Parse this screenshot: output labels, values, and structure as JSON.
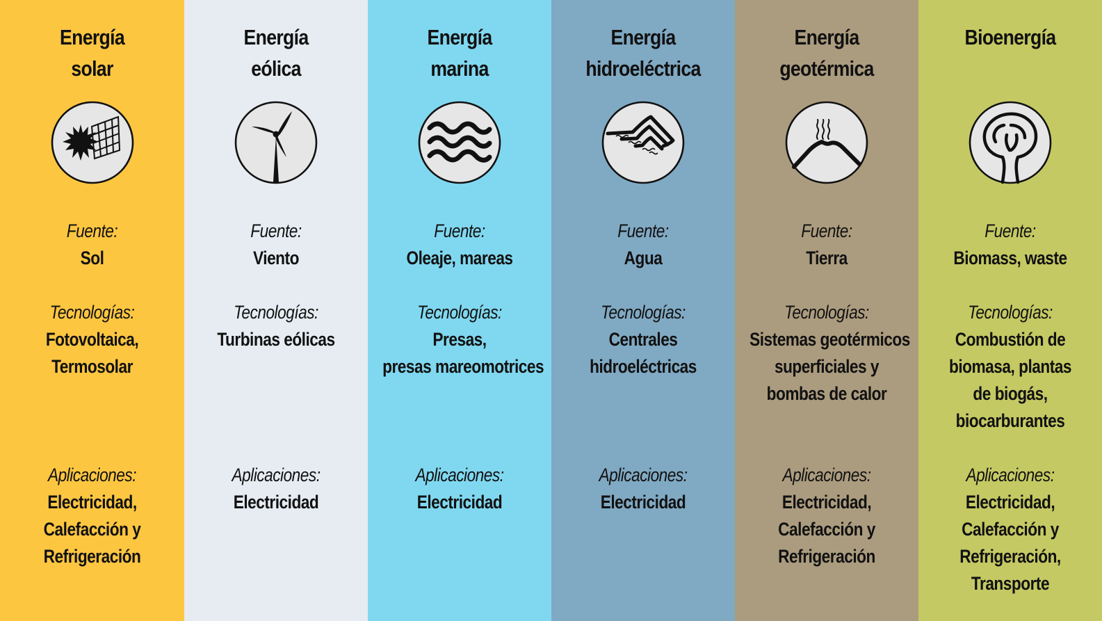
{
  "labels": {
    "fuente": "Fuente:",
    "tecnologias": "Tecnologías:",
    "aplicaciones": "Aplicaciones:"
  },
  "columns": [
    {
      "title": [
        "Energía",
        "solar"
      ],
      "icon": "solar-icon",
      "color": "#FDC641",
      "source": "Sol",
      "tech": [
        "Fotovoltaica,",
        "Termosolar"
      ],
      "apps": [
        "Electricidad,",
        "Calefacción y",
        "Refrigeración"
      ]
    },
    {
      "title": [
        "Energía",
        "eólica"
      ],
      "icon": "wind-turbine-icon",
      "color": "#E6ECF2",
      "source": "Viento",
      "tech": [
        "Turbinas eólicas"
      ],
      "apps": [
        "Electricidad"
      ]
    },
    {
      "title": [
        "Energía",
        "marina"
      ],
      "icon": "waves-icon",
      "color": "#80D8F0",
      "source": "Oleaje, mareas",
      "tech": [
        "Presas,",
        "presas mareomotrices"
      ],
      "apps": [
        "Electricidad"
      ]
    },
    {
      "title": [
        "Energía",
        "hidroeléctrica"
      ],
      "icon": "dam-icon",
      "color": "#80A9C3",
      "source": "Agua",
      "tech": [
        "Centrales",
        "hidroeléctricas"
      ],
      "apps": [
        "Electricidad"
      ]
    },
    {
      "title": [
        "Energía",
        "geotérmica"
      ],
      "icon": "volcano-icon",
      "color": "#AC9C7F",
      "source": "Tierra",
      "tech": [
        "Sistemas geotérmicos",
        "superficiales y",
        "bombas de calor"
      ],
      "apps": [
        "Electricidad,",
        "Calefacción y",
        "Refrigeración"
      ]
    },
    {
      "title": [
        "Bioenergía"
      ],
      "icon": "tree-icon",
      "color": "#C4C963",
      "source": "Biomass, waste",
      "tech": [
        "Combustión de",
        "biomasa, plantas",
        "de biogás,",
        "biocarburantes"
      ],
      "apps": [
        "Electricidad,",
        "Calefacción y",
        "Refrigeración,",
        "Transporte"
      ]
    }
  ]
}
